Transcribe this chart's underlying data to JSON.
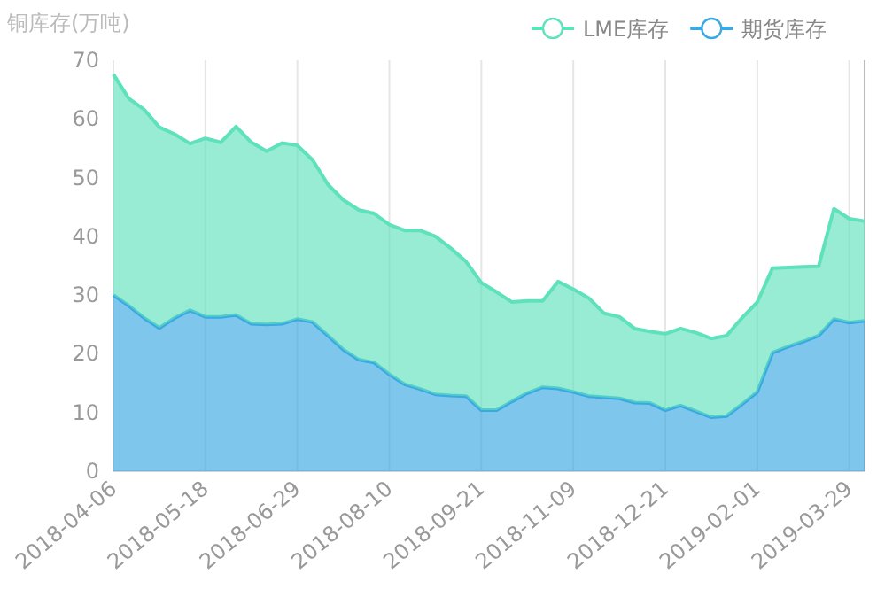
{
  "chart_data": {
    "type": "area",
    "stacked": true,
    "ylabel": "铜库存(万吨)",
    "categories": [
      "2018-04-06",
      null,
      null,
      null,
      null,
      null,
      "2018-05-18",
      null,
      null,
      null,
      null,
      null,
      "2018-06-29",
      null,
      null,
      null,
      null,
      null,
      "2018-08-10",
      null,
      null,
      null,
      null,
      null,
      "2018-09-21",
      null,
      null,
      null,
      null,
      null,
      "2018-11-09",
      null,
      null,
      null,
      null,
      null,
      "2018-12-21",
      null,
      null,
      null,
      null,
      null,
      "2019-02-01",
      null,
      null,
      null,
      null,
      null,
      "2019-03-29",
      null
    ],
    "series": [
      {
        "name": "期货库存",
        "color": "#3aa8e2",
        "values": [
          30.0,
          28.2,
          26.1,
          24.4,
          26.1,
          27.4,
          26.3,
          26.3,
          26.6,
          25.1,
          25.0,
          25.1,
          25.9,
          25.4,
          23.1,
          20.7,
          19.0,
          18.5,
          16.5,
          14.8,
          14.0,
          13.1,
          12.9,
          12.8,
          10.4,
          10.4,
          11.9,
          13.3,
          14.3,
          14.1,
          13.5,
          12.8,
          12.6,
          12.4,
          11.7,
          11.6,
          10.4,
          11.2,
          10.2,
          9.2,
          9.4,
          11.4,
          13.5,
          20.2,
          21.2,
          22.1,
          23.1,
          25.9,
          25.3,
          25.6
        ]
      },
      {
        "name": "LME库存",
        "color": "#5fe2bb",
        "values": [
          37.6,
          35.3,
          35.5,
          34.2,
          31.3,
          28.4,
          30.4,
          29.7,
          32.1,
          30.9,
          29.5,
          30.8,
          29.6,
          27.6,
          25.7,
          25.5,
          25.5,
          25.4,
          25.5,
          26.2,
          27.0,
          26.9,
          25.1,
          22.9,
          21.7,
          20.1,
          16.9,
          15.7,
          14.7,
          18.2,
          17.5,
          16.7,
          14.3,
          13.9,
          12.6,
          12.2,
          13.0,
          13.1,
          13.4,
          13.4,
          13.7,
          14.7,
          15.3,
          14.4,
          13.5,
          12.7,
          11.8,
          18.8,
          17.7,
          17.0
        ]
      }
    ],
    "ylim": [
      0,
      70
    ],
    "yticks": [
      0,
      10,
      20,
      30,
      40,
      50,
      60,
      70
    ],
    "grid": "x",
    "legend": "top right"
  }
}
